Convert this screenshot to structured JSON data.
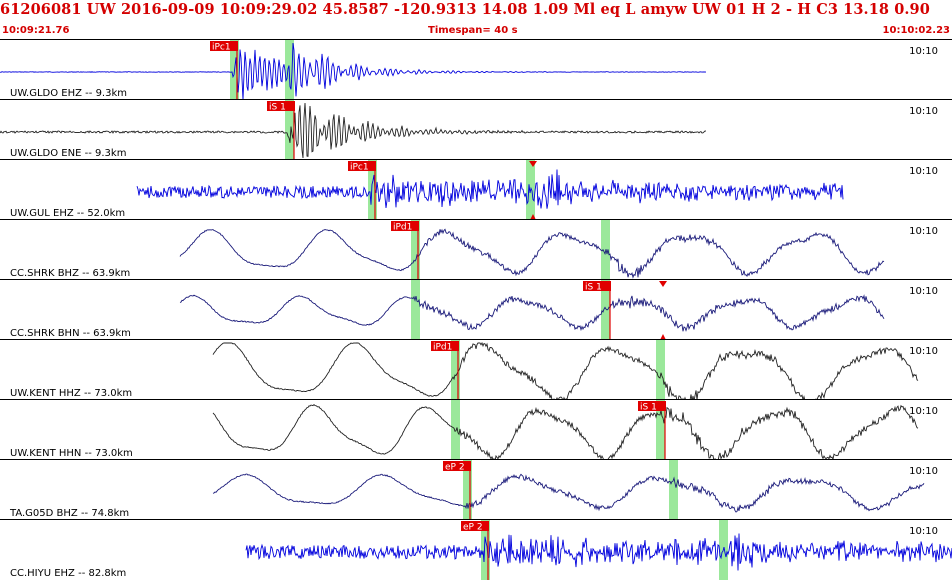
{
  "header": {
    "event_line": "61206081 UW 2016-09-09 10:09:29.02   45.8587 -120.9313  14.08  1.09 Ml  eq  L amyw     UW 01  H   2  - H C3   13.18  0.90",
    "start_time": "10:09:21.76",
    "timespan": "Timespan=  40 s",
    "end_time": "10:10:02.23"
  },
  "colors": {
    "header_text": "#d40000",
    "pick_flag": "#e00000",
    "window_highlight": "#9be89b",
    "trace_blue": "#0000dd",
    "trace_navy": "#1a1a7a",
    "trace_dark": "#222222"
  },
  "traces": [
    {
      "label": "UW.GLDO EHZ -- 9.3km",
      "time_label": "10:10",
      "color": "blue",
      "pick": {
        "label": "iPc1",
        "marker": null
      }
    },
    {
      "label": "UW.GLDO ENE -- 9.3km",
      "time_label": "10:10",
      "color": "dark",
      "pick": {
        "label": "iS 1",
        "marker": null
      }
    },
    {
      "label": "UW.GUL EHZ -- 52.0km",
      "time_label": "10:10",
      "color": "blue",
      "pick": {
        "label": "iPc1",
        "marker": "triangle-down"
      }
    },
    {
      "label": "CC.SHRK BHZ -- 63.9km",
      "time_label": "10:10",
      "color": "navy",
      "pick": {
        "label": "iPd1",
        "marker": null
      }
    },
    {
      "label": "CC.SHRK BHN -- 63.9km",
      "time_label": "10:10",
      "color": "navy",
      "pick": {
        "label": "iS 1",
        "marker": "triangle-down"
      }
    },
    {
      "label": "UW.KENT HHZ -- 73.0km",
      "time_label": "10:10",
      "color": "dark",
      "pick": {
        "label": "iPd1",
        "marker": null
      }
    },
    {
      "label": "UW.KENT HHN -- 73.0km",
      "time_label": "10:10",
      "color": "dark",
      "pick": {
        "label": "iS 1",
        "marker": null
      }
    },
    {
      "label": "TA.G05D BHZ -- 74.8km",
      "time_label": "10:10",
      "color": "navy",
      "pick": {
        "label": "eP 2",
        "marker": null
      }
    },
    {
      "label": "CC.HIYU EHZ -- 82.8km",
      "time_label": "10:10",
      "color": "blue",
      "pick": {
        "label": "eP 2",
        "marker": null
      }
    }
  ]
}
